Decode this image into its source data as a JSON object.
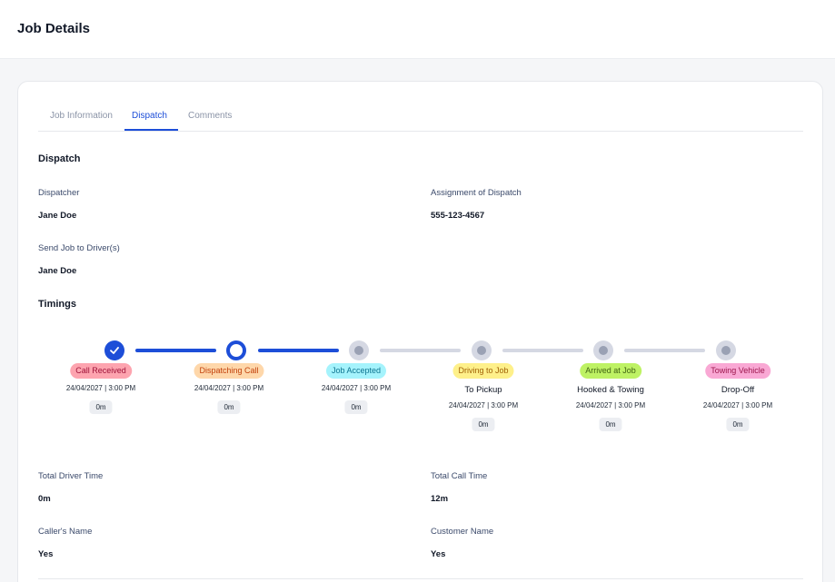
{
  "header": {
    "title": "Job Details"
  },
  "tabs": [
    {
      "label": "Job Information"
    },
    {
      "label": "Dispatch"
    },
    {
      "label": "Comments"
    }
  ],
  "active_tab": "Dispatch",
  "dispatch": {
    "title": "Dispatch",
    "dispatcher_label": "Dispatcher",
    "dispatcher_value": "Jane Doe",
    "assignment_label": "Assignment of Dispatch",
    "assignment_value": "555-123-4567",
    "send_label": "Send Job to Driver(s)",
    "send_value": "Jane Doe"
  },
  "timings": {
    "title": "Timings",
    "steps": [
      {
        "label": "Call Received",
        "subtitle": "",
        "datetime": "24/04/2027 | 3:00 PM",
        "duration": "0m",
        "status": "done",
        "pill_bg": "#fda4af",
        "pill_fg": "#9f1239"
      },
      {
        "label": "Dispatching Call",
        "subtitle": "",
        "datetime": "24/04/2027 | 3:00 PM",
        "duration": "0m",
        "status": "current",
        "pill_bg": "#fed7aa",
        "pill_fg": "#c2410c"
      },
      {
        "label": "Job Accepted",
        "subtitle": "",
        "datetime": "24/04/2027 | 3:00 PM",
        "duration": "0m",
        "status": "pending",
        "pill_bg": "#a5f3fc",
        "pill_fg": "#0e7490"
      },
      {
        "label": "Driving to Job",
        "subtitle": "To Pickup",
        "datetime": "24/04/2027 | 3:00 PM",
        "duration": "0m",
        "status": "pending",
        "pill_bg": "#fef08a",
        "pill_fg": "#a16207"
      },
      {
        "label": "Arrived at Job",
        "subtitle": "Hooked & Towing",
        "datetime": "24/04/2027 | 3:00 PM",
        "duration": "0m",
        "status": "pending",
        "pill_bg": "#bef264",
        "pill_fg": "#3f6212"
      },
      {
        "label": "Towing Vehicle",
        "subtitle": "Drop-Off",
        "datetime": "24/04/2027 | 3:00 PM",
        "duration": "0m",
        "status": "pending",
        "pill_bg": "#f9a8d4",
        "pill_fg": "#9d174d"
      }
    ]
  },
  "summary": {
    "total_driver_label": "Total Driver Time",
    "total_driver_value": "0m",
    "total_call_label": "Total Call Time",
    "total_call_value": "12m",
    "caller_label": "Caller's Name",
    "caller_value": "Yes",
    "customer_label": "Customer Name",
    "customer_value": "Yes"
  },
  "colors": {
    "accent": "#1d4ed8",
    "pending_track": "#d5d8e3"
  }
}
